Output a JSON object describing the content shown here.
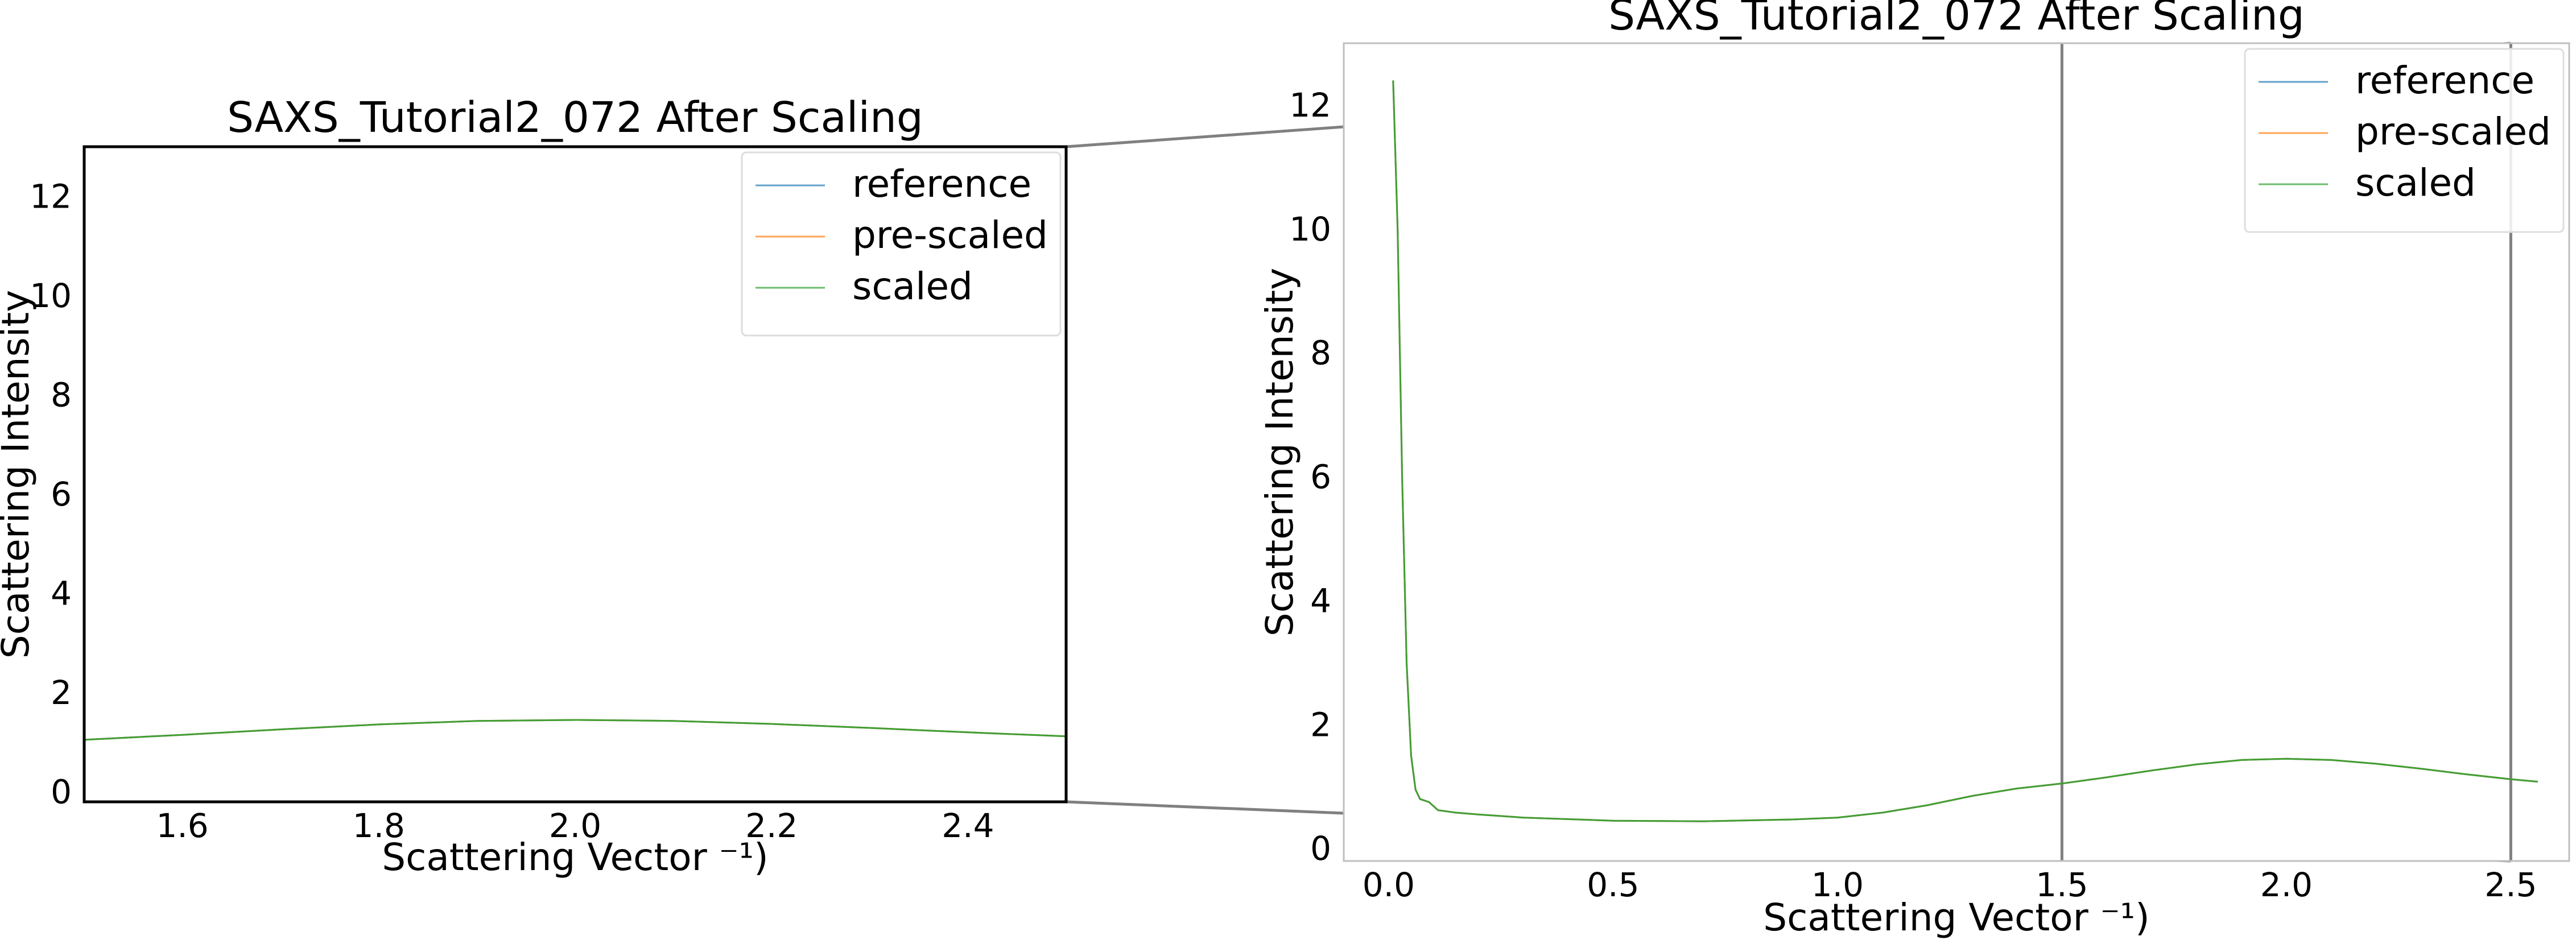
{
  "chart_data": [
    {
      "type": "line",
      "panel": "zoomed-inset",
      "title": "SAXS_Tutorial2_072 After Scaling",
      "xlabel": "Scattering Vector ⁻¹)",
      "ylabel": "Scattering Intensity",
      "xlim": [
        1.5,
        2.5
      ],
      "ylim": [
        -0.2,
        13.0
      ],
      "xticks": [
        1.6,
        1.8,
        2.0,
        2.2,
        2.4
      ],
      "xtick_labels": [
        "1.6",
        "1.8",
        "2.0",
        "2.2",
        "2.4"
      ],
      "yticks": [
        0,
        2,
        4,
        6,
        8,
        10,
        12
      ],
      "ytick_labels": [
        "0",
        "2",
        "4",
        "6",
        "8",
        "10",
        "12"
      ],
      "legend": {
        "placement": "upper-right",
        "entries": [
          "reference",
          "pre-scaled",
          "scaled"
        ]
      },
      "series": [
        {
          "name": "reference",
          "color": "#1f77b4",
          "x": [
            1.5,
            1.6,
            1.7,
            1.8,
            1.9,
            2.0,
            2.1,
            2.2,
            2.3,
            2.4,
            2.5
          ],
          "y": [
            1.05,
            1.15,
            1.26,
            1.36,
            1.43,
            1.45,
            1.43,
            1.37,
            1.29,
            1.2,
            1.12
          ]
        },
        {
          "name": "pre-scaled",
          "color": "#ff7f0e",
          "x": [
            1.5,
            1.6,
            1.7,
            1.8,
            1.9,
            2.0,
            2.1,
            2.2,
            2.3,
            2.4,
            2.5
          ],
          "y": [
            1.05,
            1.15,
            1.26,
            1.36,
            1.43,
            1.45,
            1.43,
            1.37,
            1.29,
            1.2,
            1.12
          ]
        },
        {
          "name": "scaled",
          "color": "#2ca02c",
          "x": [
            1.5,
            1.6,
            1.7,
            1.8,
            1.9,
            2.0,
            2.1,
            2.2,
            2.3,
            2.4,
            2.5
          ],
          "y": [
            1.05,
            1.15,
            1.26,
            1.36,
            1.43,
            1.45,
            1.43,
            1.37,
            1.29,
            1.2,
            1.12
          ]
        }
      ]
    },
    {
      "type": "line",
      "panel": "full-range",
      "title": "SAXS_Tutorial2_072 After Scaling",
      "xlabel": "Scattering Vector ⁻¹)",
      "ylabel": "Scattering Intensity",
      "xlim": [
        -0.1,
        2.63
      ],
      "ylim": [
        -0.2,
        13.0
      ],
      "xticks": [
        0.0,
        0.5,
        1.0,
        1.5,
        2.0,
        2.5
      ],
      "xtick_labels": [
        "0.0",
        "0.5",
        "1.0",
        "1.5",
        "2.0",
        "2.5"
      ],
      "yticks": [
        0,
        2,
        4,
        6,
        8,
        10,
        12
      ],
      "ytick_labels": [
        "0",
        "2",
        "4",
        "6",
        "8",
        "10",
        "12"
      ],
      "zoom_region": {
        "x": [
          1.5,
          2.5
        ],
        "y": [
          -0.2,
          13.0
        ]
      },
      "legend": {
        "placement": "upper-right",
        "entries": [
          "reference",
          "pre-scaled",
          "scaled"
        ]
      },
      "series": [
        {
          "name": "reference",
          "color": "#1f77b4",
          "x": [
            0.01,
            0.02,
            0.03,
            0.04,
            0.05,
            0.06,
            0.07,
            0.09,
            0.11,
            0.15,
            0.2,
            0.3,
            0.5,
            0.7,
            0.9,
            1.0,
            1.1,
            1.2,
            1.3,
            1.4,
            1.5,
            1.6,
            1.7,
            1.8,
            1.9,
            2.0,
            2.1,
            2.2,
            2.3,
            2.4,
            2.5,
            2.56
          ],
          "y": [
            12.4,
            10.0,
            6.0,
            3.0,
            1.5,
            0.95,
            0.8,
            0.75,
            0.62,
            0.58,
            0.55,
            0.5,
            0.45,
            0.44,
            0.47,
            0.5,
            0.58,
            0.7,
            0.85,
            0.97,
            1.05,
            1.15,
            1.26,
            1.36,
            1.43,
            1.45,
            1.43,
            1.37,
            1.29,
            1.2,
            1.12,
            1.08
          ]
        },
        {
          "name": "pre-scaled",
          "color": "#ff7f0e",
          "x": [
            0.01,
            0.02,
            0.03,
            0.04,
            0.05,
            0.06,
            0.07,
            0.09,
            0.11,
            0.15,
            0.2,
            0.3,
            0.5,
            0.7,
            0.9,
            1.0,
            1.1,
            1.2,
            1.3,
            1.4,
            1.5,
            1.6,
            1.7,
            1.8,
            1.9,
            2.0,
            2.1,
            2.2,
            2.3,
            2.4,
            2.5,
            2.56
          ],
          "y": [
            12.4,
            10.0,
            6.0,
            3.0,
            1.5,
            0.95,
            0.8,
            0.75,
            0.62,
            0.58,
            0.55,
            0.5,
            0.45,
            0.44,
            0.47,
            0.5,
            0.58,
            0.7,
            0.85,
            0.97,
            1.05,
            1.15,
            1.26,
            1.36,
            1.43,
            1.45,
            1.43,
            1.37,
            1.29,
            1.2,
            1.12,
            1.08
          ]
        },
        {
          "name": "scaled",
          "color": "#2ca02c",
          "x": [
            0.01,
            0.02,
            0.03,
            0.04,
            0.05,
            0.06,
            0.07,
            0.09,
            0.11,
            0.15,
            0.2,
            0.3,
            0.5,
            0.7,
            0.9,
            1.0,
            1.1,
            1.2,
            1.3,
            1.4,
            1.5,
            1.6,
            1.7,
            1.8,
            1.9,
            2.0,
            2.1,
            2.2,
            2.3,
            2.4,
            2.5,
            2.56
          ],
          "y": [
            12.4,
            10.0,
            6.0,
            3.0,
            1.5,
            0.95,
            0.8,
            0.75,
            0.62,
            0.58,
            0.55,
            0.5,
            0.45,
            0.44,
            0.47,
            0.5,
            0.58,
            0.7,
            0.85,
            0.97,
            1.05,
            1.15,
            1.26,
            1.36,
            1.43,
            1.45,
            1.43,
            1.37,
            1.29,
            1.2,
            1.12,
            1.08
          ]
        }
      ]
    }
  ]
}
